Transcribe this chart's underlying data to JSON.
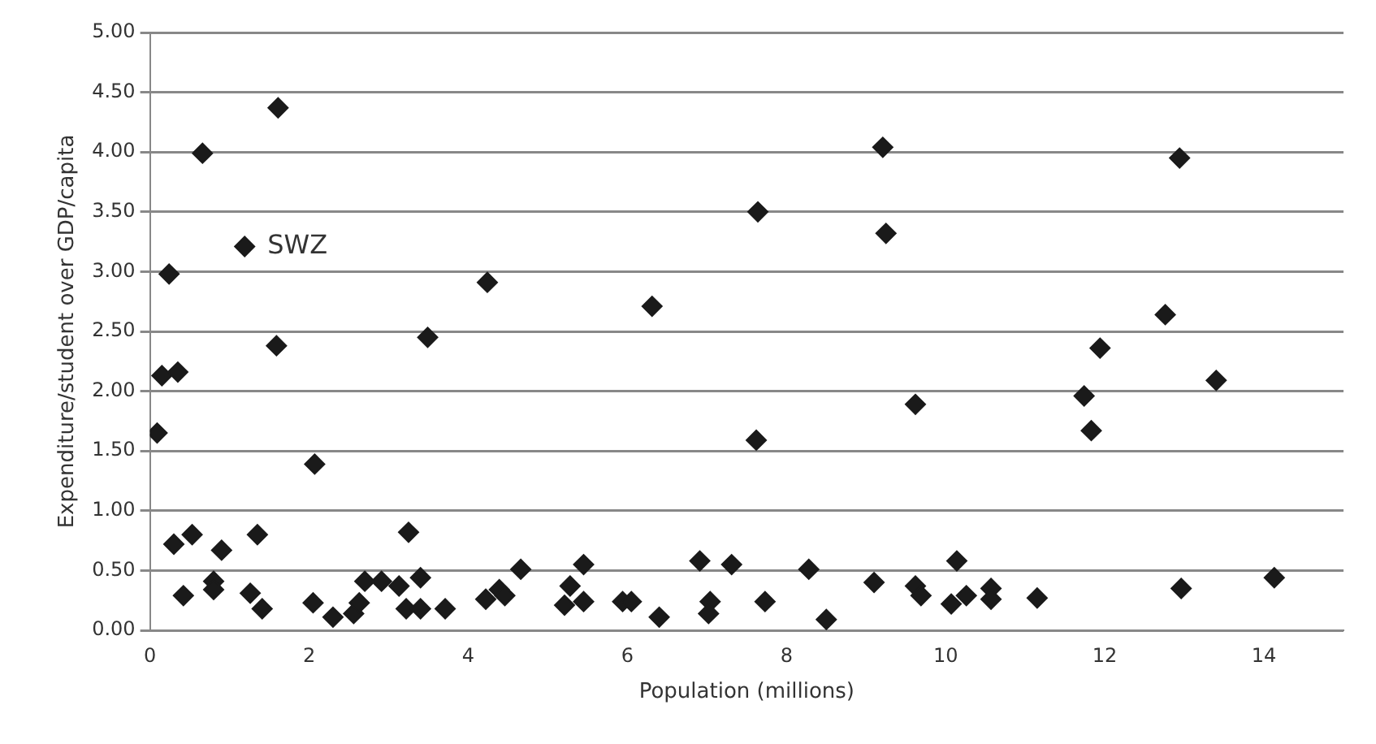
{
  "chart_data": {
    "type": "scatter",
    "xlabel": "Population (millions)",
    "ylabel": "Expenditure/student over GDP/capita",
    "xlim": [
      0,
      15
    ],
    "xticks": [
      0,
      2,
      4,
      6,
      8,
      10,
      12,
      14
    ],
    "ylim": [
      0,
      5
    ],
    "yticks": [
      {
        "value": 0,
        "label": "0.00"
      },
      {
        "value": 0.5,
        "label": "0.50"
      },
      {
        "value": 1,
        "label": "1.00"
      },
      {
        "value": 1.5,
        "label": "1.50"
      },
      {
        "value": 2,
        "label": "2.00"
      },
      {
        "value": 2.5,
        "label": "2.50"
      },
      {
        "value": 3,
        "label": "3.00"
      },
      {
        "value": 3.5,
        "label": "3.50"
      },
      {
        "value": 4,
        "label": "4.00"
      },
      {
        "value": 4.5,
        "label": "4.50"
      },
      {
        "value": 5,
        "label": "5.00"
      }
    ],
    "grid": "y",
    "marker": "diamond",
    "legend": false,
    "annotations": [
      {
        "text": "SWZ",
        "x": 1.19,
        "y": 3.21
      }
    ],
    "series": [
      {
        "color": "#1a1a1a",
        "x": [
          0.09,
          0.24,
          0.15,
          0.35,
          0.3,
          0.53,
          0.42,
          0.8,
          0.8,
          0.9,
          0.66,
          1.19,
          1.61,
          1.59,
          2.07,
          1.35,
          1.26,
          1.41,
          2.05,
          2.3,
          2.56,
          2.63,
          2.7,
          2.91,
          3.25,
          3.13,
          3.4,
          3.22,
          3.4,
          3.71,
          3.49,
          4.24,
          4.22,
          4.39,
          4.46,
          4.66,
          5.45,
          5.28,
          5.21,
          5.45,
          5.94,
          6.05,
          6.4,
          6.31,
          6.91,
          7.31,
          7.04,
          7.02,
          7.64,
          7.62,
          7.73,
          8.28,
          8.5,
          9.21,
          9.25,
          9.1,
          9.62,
          9.62,
          9.69,
          10.14,
          10.07,
          10.26,
          10.57,
          10.57,
          11.15,
          11.94,
          11.74,
          11.83,
          12.76,
          12.94,
          13.4,
          12.96,
          14.13
        ],
        "values": [
          1.65,
          2.98,
          2.13,
          2.16,
          0.72,
          0.8,
          0.29,
          0.41,
          0.34,
          0.67,
          3.99,
          3.21,
          4.37,
          2.38,
          1.39,
          0.8,
          0.31,
          0.18,
          0.23,
          0.11,
          0.14,
          0.23,
          0.41,
          0.41,
          0.82,
          0.37,
          0.44,
          0.18,
          0.18,
          0.18,
          2.45,
          2.91,
          0.26,
          0.34,
          0.29,
          0.51,
          0.55,
          0.37,
          0.21,
          0.24,
          0.24,
          0.24,
          0.11,
          2.71,
          0.58,
          0.55,
          0.24,
          0.14,
          3.5,
          1.59,
          0.24,
          0.51,
          0.09,
          4.04,
          3.32,
          0.4,
          1.89,
          0.37,
          0.29,
          0.58,
          0.22,
          0.29,
          0.35,
          0.26,
          0.27,
          2.36,
          1.96,
          1.67,
          2.64,
          3.95,
          2.09,
          0.35,
          0.44
        ]
      }
    ]
  }
}
